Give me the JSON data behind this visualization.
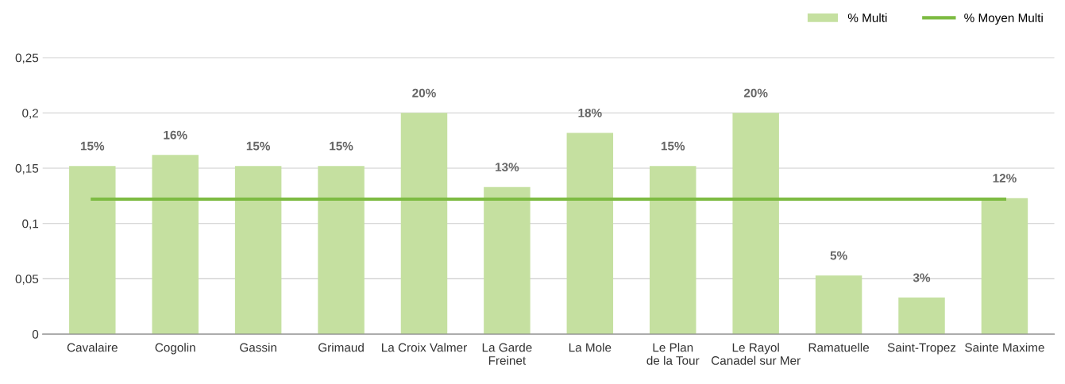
{
  "chart_data": {
    "type": "bar",
    "categories": [
      "Cavalaire",
      "Cogolin",
      "Gassin",
      "Grimaud",
      "La Croix Valmer",
      "La Garde\nFreinet",
      "La Mole",
      "Le Plan\nde la Tour",
      "Le Rayol\nCanadel sur Mer",
      "Ramatuelle",
      "Saint-Tropez",
      "Sainte Maxime"
    ],
    "series": [
      {
        "name": "% Multi",
        "color": "#c5e0a0",
        "values": [
          0.152,
          0.162,
          0.152,
          0.152,
          0.2,
          0.133,
          0.182,
          0.152,
          0.2,
          0.053,
          0.033,
          0.123
        ],
        "value_labels": [
          "15%",
          "16%",
          "15%",
          "15%",
          "20%",
          "13%",
          "18%",
          "15%",
          "20%",
          "5%",
          "3%",
          "12%"
        ]
      },
      {
        "name": "% Moyen Multi",
        "type": "line",
        "color": "#7dbb42",
        "values": [
          0.122,
          0.122,
          0.122,
          0.122,
          0.122,
          0.122,
          0.122,
          0.122,
          0.122,
          0.122,
          0.122,
          0.122
        ]
      }
    ],
    "ylim": [
      0,
      0.25
    ],
    "yticks": [
      0,
      {
        "value": 0.05,
        "label": "0,05"
      },
      {
        "value": 0.1,
        "label": "0,1"
      },
      {
        "value": 0.15,
        "label": "0,15"
      },
      {
        "value": 0.2,
        "label": "0,2"
      },
      {
        "value": 0.25,
        "label": "0,25"
      }
    ],
    "grid": "y",
    "legend": "top right"
  }
}
